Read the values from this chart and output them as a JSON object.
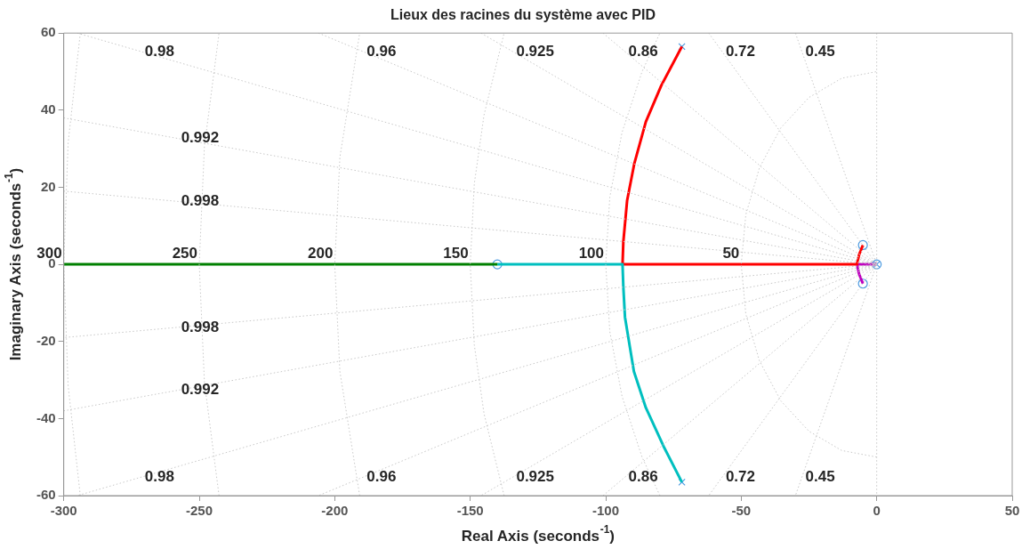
{
  "chart_data": {
    "type": "line",
    "title": "Lieux des racines du système avec PID",
    "xlabel": "Real Axis (seconds$^{-1}$)",
    "ylabel": "Imaginary Axis (seconds$^{-1}$)",
    "xlim": [
      -300,
      50
    ],
    "xticks": [
      -300,
      -250,
      -200,
      -150,
      -100,
      -50,
      0,
      50
    ],
    "ylim": [
      -60,
      60
    ],
    "yticks": [
      -60,
      -40,
      -20,
      0,
      20,
      40,
      60
    ],
    "legend": false,
    "series": [
      {
        "name": "0.98",
        "color": "#c8c8c8",
        "line_style": "dotted",
        "x": [
          -295,
          0,
          -295
        ],
        "values": [
          60,
          0,
          -60
        ]
      },
      {
        "name": "0.96",
        "color": "#c8c8c8",
        "line_style": "dotted",
        "x": [
          -206,
          0,
          -206
        ],
        "values": [
          60,
          0,
          -60
        ]
      },
      {
        "name": "0.925",
        "color": "#c8c8c8",
        "line_style": "dotted",
        "x": [
          -146,
          0,
          -146
        ],
        "values": [
          60,
          0,
          -60
        ]
      },
      {
        "name": "0.86",
        "color": "#c8c8c8",
        "line_style": "dotted",
        "x": [
          -101,
          0,
          -101
        ],
        "values": [
          60,
          0,
          -60
        ]
      },
      {
        "name": "0.72",
        "color": "#c8c8c8",
        "line_style": "dotted",
        "x": [
          -62,
          0,
          -62
        ],
        "values": [
          60,
          0,
          -60
        ]
      },
      {
        "name": "0.45",
        "color": "#c8c8c8",
        "line_style": "dotted",
        "x": [
          -30,
          0,
          -30
        ],
        "values": [
          60,
          0,
          -60
        ]
      },
      {
        "name": "0.992",
        "color": "#c8c8c8",
        "line_style": "dotted",
        "x": [
          -300,
          0,
          -300
        ],
        "values": [
          38,
          0,
          -38
        ]
      },
      {
        "name": "0.998",
        "color": "#c8c8c8",
        "line_style": "dotted",
        "x": [
          -300,
          0,
          -300
        ],
        "values": [
          19,
          0,
          -19
        ]
      },
      {
        "color": "#c8c8c8",
        "line_style": "dotted",
        "x": [
          0,
          0
        ],
        "values": [
          60,
          -60
        ]
      },
      {
        "name": "50",
        "color": "#c8c8c8",
        "line_style": "dotted",
        "x": [
          0,
          -12.9,
          -25,
          -35.4,
          -43.3,
          -48.3,
          -50,
          -48.3,
          -43.3,
          -35.4,
          -25,
          -12.9,
          0
        ],
        "values": [
          -50,
          -48.3,
          -43.3,
          -35.4,
          -25,
          -12.9,
          0,
          12.9,
          25,
          35.4,
          43.3,
          48.3,
          50
        ]
      },
      {
        "name": "100",
        "color": "#c8c8c8",
        "line_style": "dotted",
        "x": [
          -80,
          -86.6,
          -94,
          -98.5,
          -100,
          -98.5,
          -94,
          -86.6,
          -80
        ],
        "values": [
          -60,
          -50,
          -34.2,
          -17.4,
          0,
          17.4,
          34.2,
          50,
          60
        ]
      },
      {
        "name": "150",
        "color": "#c8c8c8",
        "line_style": "dotted",
        "x": [
          -137.5,
          -144.9,
          -148.5,
          -150,
          -148.5,
          -144.9,
          -137.5
        ],
        "values": [
          -60,
          -38.8,
          -20.9,
          0,
          20.9,
          38.8,
          60
        ]
      },
      {
        "name": "200",
        "color": "#c8c8c8",
        "line_style": "dotted",
        "x": [
          -190.8,
          -198.1,
          -200,
          -198.1,
          -190.8
        ],
        "values": [
          -60,
          -27.8,
          0,
          27.8,
          60
        ]
      },
      {
        "name": "250",
        "color": "#c8c8c8",
        "line_style": "dotted",
        "x": [
          -242.7,
          -248.1,
          -250,
          -248.1,
          -242.7
        ],
        "values": [
          -60,
          -30.5,
          0,
          30.5,
          60
        ]
      },
      {
        "name": "300",
        "color": "#c8c8c8",
        "line_style": "dotted",
        "x": [
          -293.9,
          -298.4,
          -300,
          -298.4,
          -293.9
        ],
        "values": [
          -60,
          -31.4,
          0,
          31.4,
          60
        ]
      },
      {
        "color": "#008000",
        "x": [
          -140,
          -300
        ],
        "values": [
          0,
          0
        ]
      },
      {
        "color": "#00bfbf",
        "x": [
          -71.9,
          -78.6,
          -85.2,
          -89.6,
          -92.9,
          -93.5,
          -93.8,
          -140
        ],
        "values": [
          -56.5,
          -47.3,
          -37.2,
          -27.8,
          -13.7,
          -5.9,
          0,
          0
        ]
      },
      {
        "color": "#ff0000",
        "x": [
          -71.9,
          -79.5,
          -85.2,
          -89.5,
          -92.1,
          -93.5,
          -93.8,
          -7.3,
          -6.5,
          -5.1
        ],
        "values": [
          56.5,
          46.4,
          37,
          26,
          16.6,
          5.9,
          0,
          0,
          2.5,
          5
        ]
      },
      {
        "color": "#bf00bf",
        "x": [
          0,
          -7.3,
          -6.5,
          -5.1
        ],
        "values": [
          0,
          0,
          -2.5,
          -5
        ]
      },
      {
        "type": "scatter",
        "color": "#4d9be0",
        "marker": "cross",
        "x": [
          -71.9,
          -71.9,
          0
        ],
        "values": [
          56.5,
          -56.5,
          0
        ]
      },
      {
        "type": "scatter",
        "color": "#4d9be0",
        "marker": "circle",
        "x": [
          -140,
          -5.1,
          -5.1,
          0
        ],
        "values": [
          0,
          5,
          -5,
          0
        ]
      }
    ]
  }
}
